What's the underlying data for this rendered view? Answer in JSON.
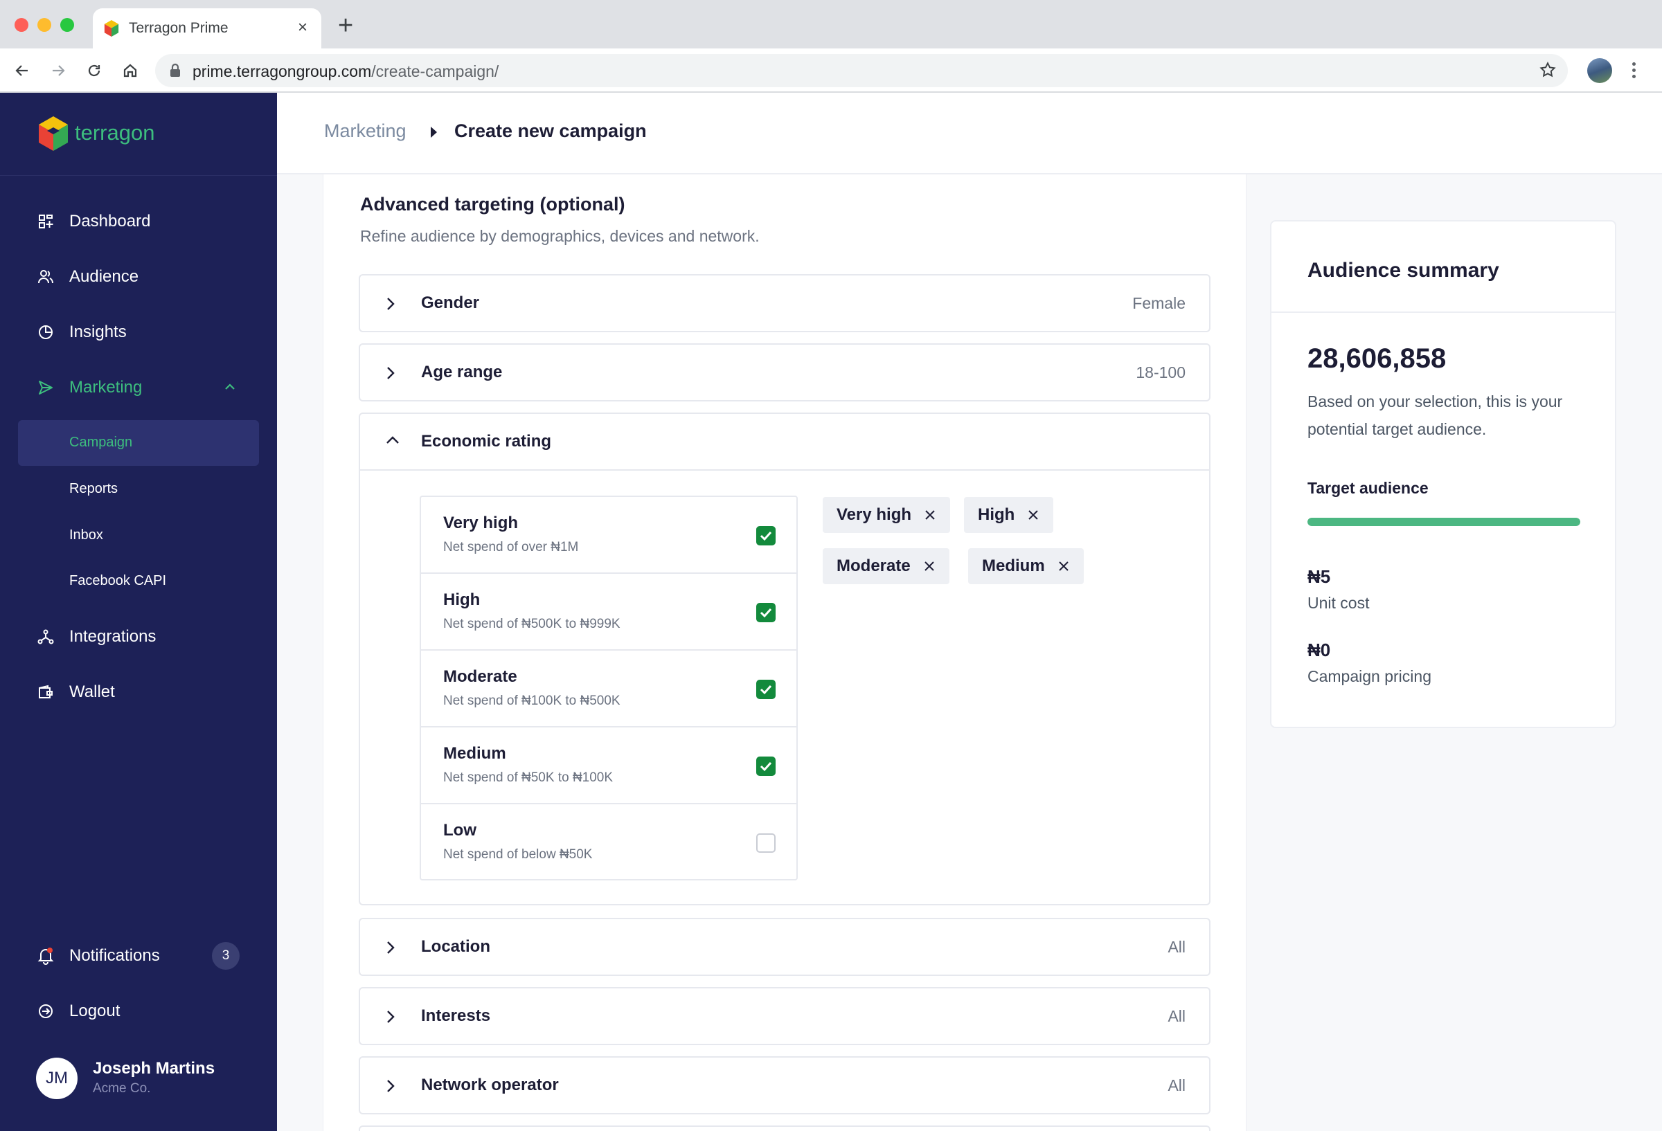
{
  "browser": {
    "tab_title": "Terragon Prime",
    "url_host": "prime.terragongroup.com",
    "url_path": "/create-campaign/"
  },
  "brand": {
    "name": "terragon",
    "color": "#3dbe7e"
  },
  "sidebar": {
    "items": [
      {
        "label": "Dashboard",
        "icon": "dashboard-icon"
      },
      {
        "label": "Audience",
        "icon": "users-icon"
      },
      {
        "label": "Insights",
        "icon": "pie-chart-icon"
      },
      {
        "label": "Marketing",
        "icon": "send-icon",
        "active": true,
        "expanded": true
      },
      {
        "label": "Integrations",
        "icon": "integrations-icon"
      },
      {
        "label": "Wallet",
        "icon": "wallet-icon"
      }
    ],
    "sub_items": [
      {
        "label": "Campaign",
        "active": true
      },
      {
        "label": "Reports"
      },
      {
        "label": "Inbox"
      },
      {
        "label": "Facebook CAPI"
      }
    ],
    "notifications": {
      "label": "Notifications",
      "count": "3"
    },
    "logout": {
      "label": "Logout"
    },
    "user": {
      "initials": "JM",
      "name": "Joseph Martins",
      "org": "Acme Co."
    }
  },
  "breadcrumb": {
    "parent": "Marketing",
    "current": "Create new campaign"
  },
  "targeting": {
    "title": "Advanced targeting (optional)",
    "subtitle": "Refine audience by demographics, devices and network.",
    "sections": [
      {
        "title": "Gender",
        "value": "Female"
      },
      {
        "title": "Age range",
        "value": "18-100"
      },
      {
        "title": "Economic rating",
        "value": ""
      },
      {
        "title": "Location",
        "value": "All"
      },
      {
        "title": "Interests",
        "value": "All"
      },
      {
        "title": "Network operator",
        "value": "All"
      }
    ],
    "economic_options": [
      {
        "title": "Very high",
        "desc": "Net spend of over ₦1M",
        "checked": true
      },
      {
        "title": "High",
        "desc": "Net spend of ₦500K to ₦999K",
        "checked": true
      },
      {
        "title": "Moderate",
        "desc": "Net spend of ₦100K to ₦500K",
        "checked": true
      },
      {
        "title": "Medium",
        "desc": "Net spend of ₦50K to ₦100K",
        "checked": true
      },
      {
        "title": "Low",
        "desc": "Net spend of below ₦50K",
        "checked": false
      }
    ],
    "selected_chips": [
      "Very high",
      "High",
      "Moderate",
      "Medium"
    ]
  },
  "summary": {
    "title": "Audience summary",
    "audience_count": "28,606,858",
    "description": "Based on your selection, this is your potential target audience.",
    "target_label": "Target audience",
    "target_progress": 1.0,
    "unit_cost_value": "₦5",
    "unit_cost_label": "Unit cost",
    "pricing_value": "₦0",
    "pricing_label": "Campaign pricing"
  },
  "colors": {
    "sidebar_bg": "#1d2157",
    "accent_green": "#3dbe7e",
    "checkbox_green": "#138a3c",
    "progress_green": "#4cb782"
  }
}
